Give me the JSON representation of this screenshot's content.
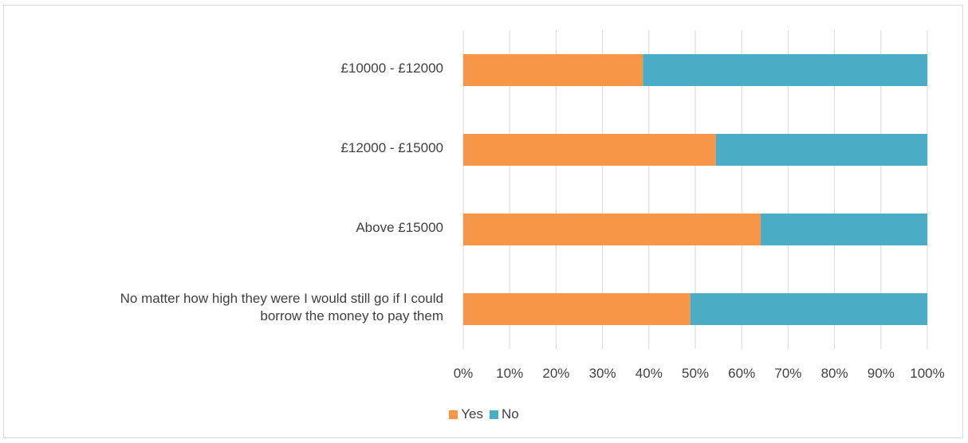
{
  "chart_data": {
    "type": "bar",
    "orientation": "horizontal",
    "stacked": true,
    "categories": [
      "£10000 - £12000",
      "£12000 - £15000",
      "Above £15000",
      "No matter how high they were I would still go if I could borrow the money to pay them"
    ],
    "category_lines": [
      [
        "£10000 - £12000"
      ],
      [
        "£12000 - £15000"
      ],
      [
        "Above £15000"
      ],
      [
        "No matter how high they were I would still go if I could",
        "borrow the money to pay them"
      ]
    ],
    "series": [
      {
        "name": "Yes",
        "color": "#F79646",
        "values": [
          38.7,
          54.4,
          64.1,
          48.9
        ]
      },
      {
        "name": "No",
        "color": "#4BACC6",
        "values": [
          61.3,
          45.6,
          35.9,
          51.1
        ]
      }
    ],
    "xlim": [
      0,
      100
    ],
    "xticks": [
      "0%",
      "10%",
      "20%",
      "30%",
      "40%",
      "50%",
      "60%",
      "70%",
      "80%",
      "90%",
      "100%"
    ],
    "grid": true,
    "legend_position": "bottom",
    "title": "",
    "xlabel": "",
    "ylabel": ""
  }
}
